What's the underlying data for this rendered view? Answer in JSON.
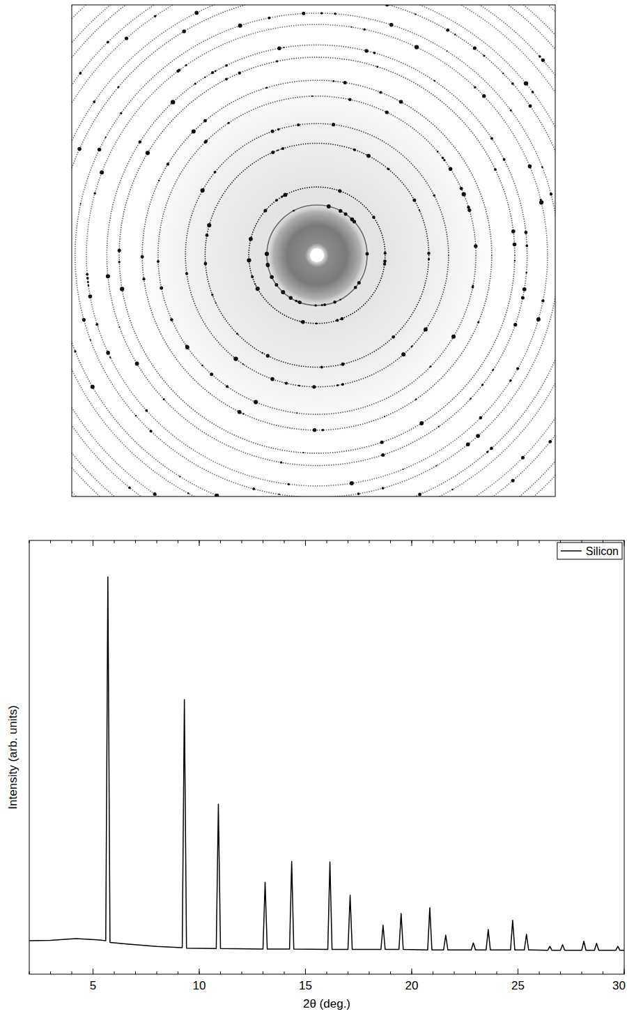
{
  "chart_data": {
    "type": "line",
    "xlabel": "2θ (deg.)",
    "ylabel": "Intensity (arb. units)",
    "xlim": [
      2,
      30
    ],
    "ylim": [
      0,
      100
    ],
    "xticks": [
      5,
      10,
      15,
      20,
      25,
      30
    ],
    "tick_labels": "x",
    "legend": "upper right",
    "series": [
      {
        "name": "Silicon",
        "color": "#000000",
        "line_style": "solid",
        "x": [
          2,
          3,
          4.2,
          5.2,
          5.6,
          5.7,
          5.8,
          6.5,
          8,
          9.2,
          9.3,
          9.4,
          10.8,
          10.9,
          11.0,
          13.0,
          13.1,
          13.2,
          14.25,
          14.35,
          14.45,
          16.05,
          16.15,
          16.25,
          17.0,
          17.1,
          17.2,
          18.55,
          18.65,
          18.75,
          19.4,
          19.5,
          19.6,
          20.75,
          20.85,
          20.95,
          21.5,
          21.6,
          21.7,
          22.8,
          22.9,
          23.0,
          23.5,
          23.6,
          23.7,
          24.65,
          24.75,
          24.85,
          25.3,
          25.4,
          25.5,
          26.4,
          26.5,
          26.6,
          27.0,
          27.1,
          27.2,
          28.0,
          28.1,
          28.2,
          28.6,
          28.7,
          28.8,
          29.6,
          29.7,
          29.8,
          30
        ],
        "values": [
          7.7,
          7.8,
          8.2,
          7.9,
          7.7,
          91.6,
          7.3,
          7.0,
          6.4,
          6.1,
          63.3,
          6.0,
          5.9,
          39.2,
          5.9,
          5.8,
          21.2,
          5.8,
          5.8,
          26.0,
          5.8,
          5.7,
          25.9,
          5.7,
          5.7,
          18.2,
          5.7,
          5.7,
          11.3,
          5.7,
          5.7,
          14.0,
          5.7,
          5.6,
          15.3,
          5.6,
          5.6,
          9.0,
          5.6,
          5.6,
          7.2,
          5.6,
          5.6,
          10.3,
          5.6,
          5.6,
          12.4,
          5.6,
          5.6,
          9.2,
          5.6,
          5.5,
          6.4,
          5.5,
          5.5,
          6.8,
          5.5,
          5.5,
          7.6,
          5.5,
          5.5,
          7.1,
          5.5,
          5.5,
          6.4,
          5.5,
          5.5
        ]
      }
    ]
  }
}
